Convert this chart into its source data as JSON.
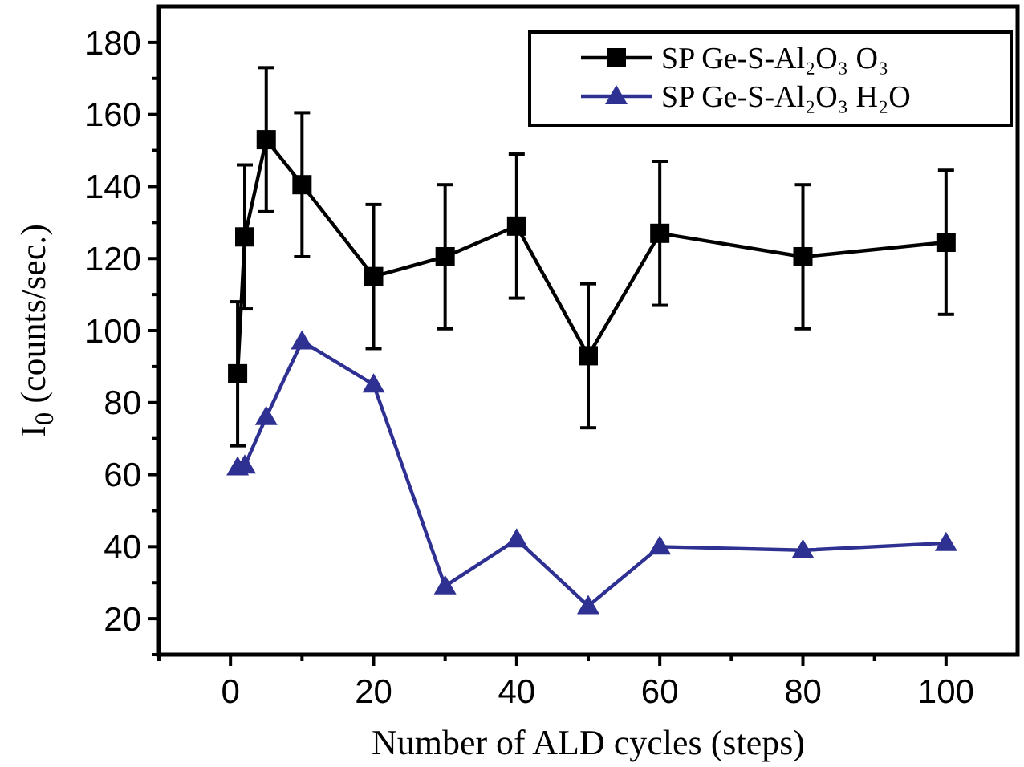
{
  "chart_data": {
    "type": "line",
    "xlabel": "Number of ALD cycles (steps)",
    "ylabel": "I$_{0}$ (counts/sec.)",
    "xlim": [
      -10,
      110
    ],
    "ylim": [
      10,
      190
    ],
    "xticks": [
      {
        "value": -10,
        "label": null
      },
      0,
      {
        "value": 10,
        "label": null
      },
      20,
      {
        "value": 30,
        "label": null
      },
      40,
      {
        "value": 50,
        "label": null
      },
      60,
      {
        "value": 70,
        "label": null
      },
      80,
      {
        "value": 90,
        "label": null
      },
      100
    ],
    "yticks": [
      {
        "value": 10,
        "label": null
      },
      20,
      {
        "value": 30,
        "label": null
      },
      40,
      {
        "value": 50,
        "label": null
      },
      60,
      {
        "value": 70,
        "label": null
      },
      80,
      {
        "value": 90,
        "label": null
      },
      100,
      {
        "value": 110,
        "label": null
      },
      120,
      {
        "value": 130,
        "label": null
      },
      140,
      {
        "value": 150,
        "label": null
      },
      160,
      {
        "value": 170,
        "label": null
      },
      180
    ],
    "grid": false,
    "legend": "top right",
    "line_style": "solid",
    "series": [
      {
        "name": "SP Ge-S-Al₂O₃ O₃",
        "color": "#000000",
        "marker": "square",
        "x": [
          1,
          2,
          5,
          10,
          20,
          30,
          40,
          50,
          60,
          80,
          100
        ],
        "values": [
          88,
          126,
          153,
          140.5,
          115,
          120.5,
          129,
          93,
          127,
          120.5,
          124.5
        ],
        "errors": [
          20,
          20,
          20,
          20,
          20,
          20,
          20,
          20,
          20,
          20,
          20
        ]
      },
      {
        "name": "SP Ge-S-Al₂O₃ H₂O",
        "color": "#2e3192",
        "marker": "triangle",
        "x": [
          1,
          2,
          5,
          10,
          20,
          30,
          40,
          50,
          60,
          80,
          100
        ],
        "values": [
          62,
          62.5,
          76,
          97,
          85,
          29,
          42,
          23.5,
          40,
          39,
          41
        ]
      }
    ]
  }
}
